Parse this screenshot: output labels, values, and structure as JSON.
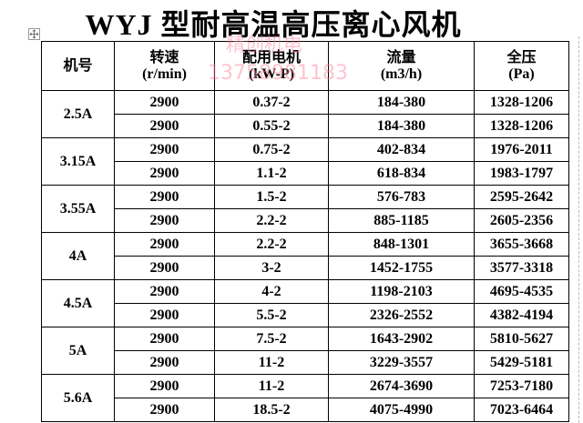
{
  "title": "WYJ 型耐高温高压离心风机",
  "watermark": {
    "name": "精创机电",
    "phone": "13758981183"
  },
  "table": {
    "header": [
      [
        "机号"
      ],
      [
        "转速",
        "(r/min)"
      ],
      [
        "配用电机",
        "(kW-P)"
      ],
      [
        "流量",
        "(m3/h)"
      ],
      [
        "全压",
        "(Pa)"
      ]
    ],
    "groups": [
      {
        "model": "2.5A",
        "rows": [
          [
            "2900",
            "0.37-2",
            "184-380",
            "1328-1206"
          ],
          [
            "2900",
            "0.55-2",
            "184-380",
            "1328-1206"
          ]
        ]
      },
      {
        "model": "3.15A",
        "rows": [
          [
            "2900",
            "0.75-2",
            "402-834",
            "1976-2011"
          ],
          [
            "2900",
            "1.1-2",
            "618-834",
            "1983-1797"
          ]
        ]
      },
      {
        "model": "3.55A",
        "rows": [
          [
            "2900",
            "1.5-2",
            "576-783",
            "2595-2642"
          ],
          [
            "2900",
            "2.2-2",
            "885-1185",
            "2605-2356"
          ]
        ]
      },
      {
        "model": "4A",
        "rows": [
          [
            "2900",
            "2.2-2",
            "848-1301",
            "3655-3668"
          ],
          [
            "2900",
            "3-2",
            "1452-1755",
            "3577-3318"
          ]
        ]
      },
      {
        "model": "4.5A",
        "rows": [
          [
            "2900",
            "4-2",
            "1198-2103",
            "4695-4535"
          ],
          [
            "2900",
            "5.5-2",
            "2326-2552",
            "4382-4194"
          ]
        ]
      },
      {
        "model": "5A",
        "rows": [
          [
            "2900",
            "7.5-2",
            "1643-2902",
            "5810-5627"
          ],
          [
            "2900",
            "11-2",
            "3229-3557",
            "5429-5181"
          ]
        ]
      },
      {
        "model": "5.6A",
        "rows": [
          [
            "2900",
            "11-2",
            "2674-3690",
            "7253-7180"
          ],
          [
            "2900",
            "18.5-2",
            "4075-4990",
            "7023-6464"
          ]
        ]
      }
    ]
  }
}
